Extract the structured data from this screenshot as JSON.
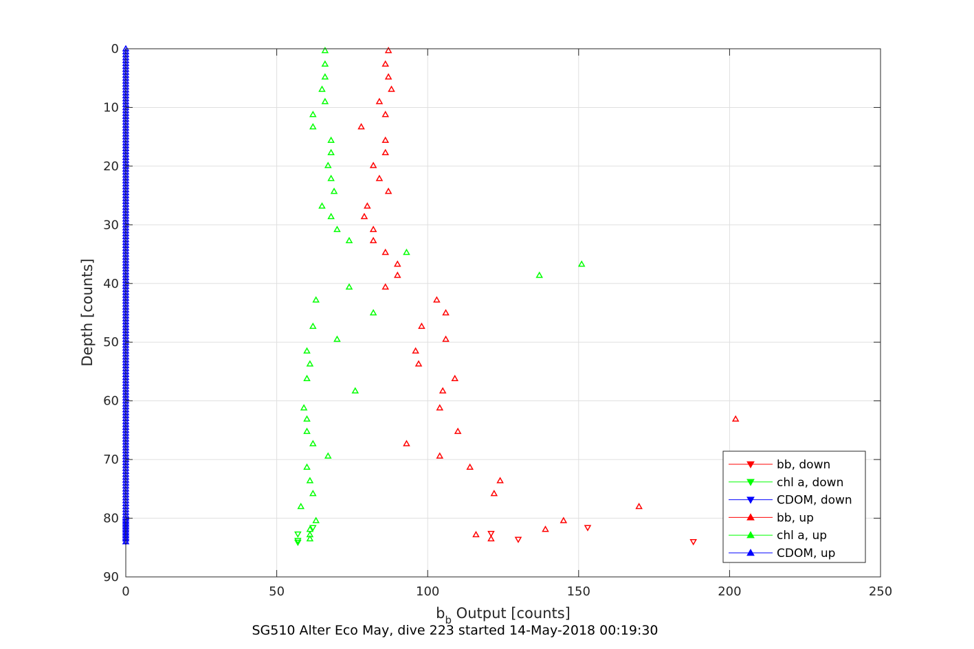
{
  "chart_data": {
    "type": "scatter",
    "title": "",
    "caption": "SG510 Alter Eco May, dive 223 started 14-May-2018 00:19:30",
    "xlabel_main": "b",
    "xlabel_sub": "b",
    "xlabel_rest": " Output [counts]",
    "ylabel": "Depth [counts]",
    "xlim": [
      0,
      250
    ],
    "ylim": [
      0,
      90
    ],
    "y_reversed": true,
    "grid": true,
    "x_ticks": [
      "0",
      "50",
      "100",
      "150",
      "200",
      "250"
    ],
    "y_ticks": [
      "0",
      "10",
      "20",
      "30",
      "40",
      "50",
      "60",
      "70",
      "80",
      "90"
    ],
    "legend_position": "bottom-right",
    "series": [
      {
        "name": "bb, down",
        "color": "#ff0000",
        "marker": "triangle-down",
        "points": [
          [
            121,
            82.6
          ],
          [
            130,
            83.6
          ],
          [
            188,
            84.0
          ],
          [
            153,
            81.6
          ]
        ]
      },
      {
        "name": "chl a, down",
        "color": "#00ff00",
        "marker": "triangle-down",
        "points": [
          [
            57,
            82.7
          ],
          [
            57,
            83.8
          ],
          [
            57,
            84.1
          ],
          [
            62,
            81.6
          ]
        ]
      },
      {
        "name": "CDOM, down",
        "color": "#0000ff",
        "marker": "triangle-down",
        "points": [
          [
            0,
            82.0
          ],
          [
            0,
            82.5
          ],
          [
            0,
            83.0
          ],
          [
            0,
            83.5
          ],
          [
            0,
            84.0
          ],
          [
            0,
            81.5
          ],
          [
            0,
            81.0
          ],
          [
            0,
            80.5
          ]
        ]
      },
      {
        "name": "bb, up",
        "color": "#ff0000",
        "marker": "triangle-up",
        "points": [
          [
            87,
            0.3
          ],
          [
            86,
            2.6
          ],
          [
            87,
            4.8
          ],
          [
            88,
            6.9
          ],
          [
            84,
            9.0
          ],
          [
            86,
            11.2
          ],
          [
            78,
            13.3
          ],
          [
            86,
            15.6
          ],
          [
            86,
            17.7
          ],
          [
            82,
            19.9
          ],
          [
            84,
            22.1
          ],
          [
            87,
            24.3
          ],
          [
            80,
            26.8
          ],
          [
            79,
            28.6
          ],
          [
            82,
            30.8
          ],
          [
            82,
            32.7
          ],
          [
            86,
            34.7
          ],
          [
            90,
            36.7
          ],
          [
            90,
            38.6
          ],
          [
            86,
            40.6
          ],
          [
            103,
            42.8
          ],
          [
            106,
            45.0
          ],
          [
            98,
            47.3
          ],
          [
            106,
            49.5
          ],
          [
            96,
            51.5
          ],
          [
            97,
            53.7
          ],
          [
            109,
            56.2
          ],
          [
            105,
            58.3
          ],
          [
            104,
            61.2
          ],
          [
            202,
            63.1
          ],
          [
            110,
            65.2
          ],
          [
            93,
            67.3
          ],
          [
            104,
            69.4
          ],
          [
            114,
            71.3
          ],
          [
            124,
            73.6
          ],
          [
            122,
            75.8
          ],
          [
            170,
            78.0
          ],
          [
            145,
            80.4
          ],
          [
            139,
            81.9
          ],
          [
            116,
            82.8
          ],
          [
            121,
            83.5
          ]
        ]
      },
      {
        "name": "chl a, up",
        "color": "#00ff00",
        "marker": "triangle-up",
        "points": [
          [
            66,
            0.3
          ],
          [
            66,
            2.6
          ],
          [
            66,
            4.8
          ],
          [
            65,
            6.9
          ],
          [
            66,
            9.0
          ],
          [
            62,
            11.2
          ],
          [
            62,
            13.3
          ],
          [
            68,
            15.6
          ],
          [
            68,
            17.7
          ],
          [
            67,
            19.9
          ],
          [
            68,
            22.1
          ],
          [
            69,
            24.3
          ],
          [
            65,
            26.8
          ],
          [
            68,
            28.6
          ],
          [
            70,
            30.8
          ],
          [
            74,
            32.7
          ],
          [
            93,
            34.7
          ],
          [
            151,
            36.7
          ],
          [
            137,
            38.6
          ],
          [
            74,
            40.6
          ],
          [
            63,
            42.8
          ],
          [
            82,
            45.0
          ],
          [
            62,
            47.3
          ],
          [
            70,
            49.5
          ],
          [
            60,
            51.5
          ],
          [
            61,
            53.7
          ],
          [
            60,
            56.2
          ],
          [
            76,
            58.3
          ],
          [
            59,
            61.2
          ],
          [
            60,
            63.1
          ],
          [
            60,
            65.2
          ],
          [
            62,
            67.3
          ],
          [
            67,
            69.4
          ],
          [
            60,
            71.3
          ],
          [
            61,
            73.6
          ],
          [
            62,
            75.8
          ],
          [
            58,
            78.0
          ],
          [
            63,
            80.4
          ],
          [
            61,
            81.9
          ],
          [
            61,
            82.8
          ],
          [
            61,
            83.5
          ]
        ]
      },
      {
        "name": "CDOM, up",
        "color": "#0000ff",
        "marker": "triangle-up",
        "depth_range": [
          0,
          84
        ],
        "depth_step": 0.5,
        "value": 0
      }
    ]
  }
}
